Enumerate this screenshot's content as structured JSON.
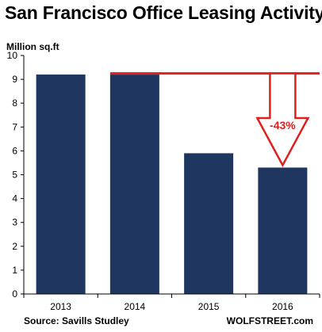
{
  "chart_data": {
    "type": "bar",
    "title": "San Francisco Office Leasing Activity",
    "ylabel": "Million sq.ft",
    "xlabel": "",
    "categories": [
      "2013",
      "2014",
      "2015",
      "2016"
    ],
    "values": [
      9.2,
      9.2,
      5.9,
      5.3
    ],
    "ylim": [
      0,
      10
    ],
    "yticks": [
      "0",
      "1",
      "2",
      "3",
      "4",
      "5",
      "6",
      "7",
      "8",
      "9",
      "10"
    ],
    "grid": false,
    "bar_color": "#1f3760",
    "annotation": {
      "text": "-43%",
      "reference_value": 9.25,
      "from_category": "2014",
      "to_category": "2016",
      "color": "#e0201f"
    },
    "source": "Source: Savills Studley",
    "credit": "WOLFSTREET.com"
  }
}
